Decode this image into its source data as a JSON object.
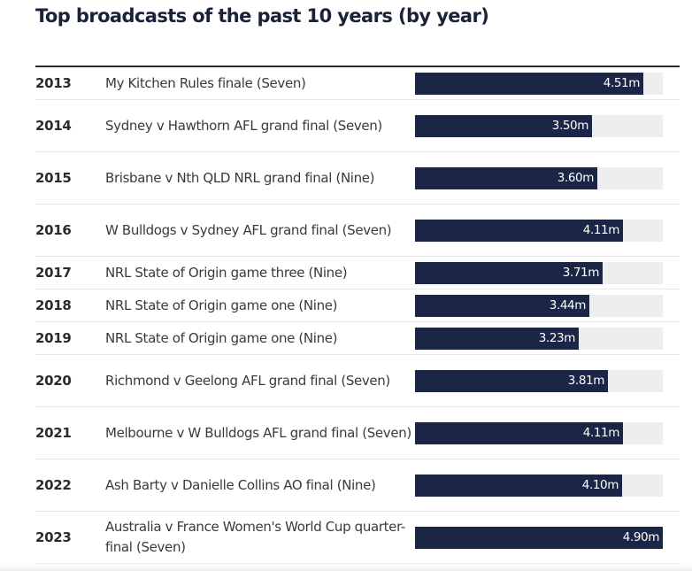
{
  "chart_data": {
    "type": "bar",
    "orientation": "horizontal",
    "title": "Top broadcasts of the past 10 years (by year)",
    "xlabel": "",
    "ylabel": "",
    "xlim": [
      0,
      4.9
    ],
    "unit_suffix": "m",
    "bar_color": "#1b2646",
    "track_color": "#eeeeee",
    "rows": [
      {
        "year": "2013",
        "label": "My Kitchen Rules finale (Seven)",
        "value": 4.51,
        "value_label": "4.51m",
        "lines": 1
      },
      {
        "year": "2014",
        "label": "Sydney v Hawthorn AFL grand final (Seven)",
        "value": 3.5,
        "value_label": "3.50m",
        "lines": 2
      },
      {
        "year": "2015",
        "label": "Brisbane v Nth QLD NRL grand final (Nine)",
        "value": 3.6,
        "value_label": "3.60m",
        "lines": 2
      },
      {
        "year": "2016",
        "label": "W Bulldogs v Sydney AFL grand final (Seven)",
        "value": 4.11,
        "value_label": "4.11m",
        "lines": 2
      },
      {
        "year": "2017",
        "label": "NRL State of Origin game three (Nine)",
        "value": 3.71,
        "value_label": "3.71m",
        "lines": 1
      },
      {
        "year": "2018",
        "label": "NRL State of Origin game one (Nine)",
        "value": 3.44,
        "value_label": "3.44m",
        "lines": 1
      },
      {
        "year": "2019",
        "label": "NRL State of Origin game one (Nine)",
        "value": 3.23,
        "value_label": "3.23m",
        "lines": 1
      },
      {
        "year": "2020",
        "label": "Richmond v Geelong AFL grand final (Seven)",
        "value": 3.81,
        "value_label": "3.81m",
        "lines": 2
      },
      {
        "year": "2021",
        "label": "Melbourne v W Bulldogs AFL grand final (Seven)",
        "value": 4.11,
        "value_label": "4.11m",
        "lines": 2
      },
      {
        "year": "2022",
        "label": "Ash Barty v Danielle Collins AO final (Nine)",
        "value": 4.1,
        "value_label": "4.10m",
        "lines": 2
      },
      {
        "year": "2023",
        "label": "Australia v France Women's World Cup quarter-final (Seven)",
        "value": 4.9,
        "value_label": "4.90m",
        "lines": 2
      }
    ]
  }
}
